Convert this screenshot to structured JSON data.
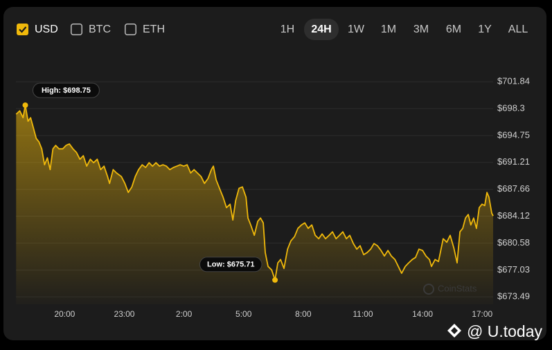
{
  "controls": {
    "currencies": [
      {
        "label": "USD",
        "checked": true
      },
      {
        "label": "BTC",
        "checked": false
      },
      {
        "label": "ETH",
        "checked": false
      }
    ],
    "ranges": [
      {
        "label": "1H",
        "active": false
      },
      {
        "label": "24H",
        "active": true
      },
      {
        "label": "1W",
        "active": false
      },
      {
        "label": "1M",
        "active": false
      },
      {
        "label": "3M",
        "active": false
      },
      {
        "label": "6M",
        "active": false
      },
      {
        "label": "1Y",
        "active": false
      },
      {
        "label": "ALL",
        "active": false
      }
    ]
  },
  "chart_data": {
    "type": "area",
    "color": "#f0b90b",
    "x": [
      17.56,
      17.74,
      17.91,
      18.02,
      18.16,
      18.29,
      18.43,
      18.57,
      18.71,
      18.85,
      18.99,
      19.13,
      19.27,
      19.41,
      19.55,
      19.72,
      19.9,
      20.07,
      20.24,
      20.42,
      20.59,
      20.77,
      20.94,
      21.11,
      21.29,
      21.46,
      21.64,
      21.81,
      21.98,
      22.16,
      22.26,
      22.44,
      22.61,
      22.85,
      23.03,
      23.2,
      23.38,
      23.55,
      23.72,
      23.9,
      24.07,
      24.25,
      24.42,
      24.59,
      24.77,
      24.94,
      25.12,
      25.29,
      25.47,
      25.64,
      25.81,
      25.99,
      26.16,
      26.34,
      26.51,
      26.68,
      26.86,
      27.03,
      27.21,
      27.38,
      27.48,
      27.62,
      27.83,
      27.97,
      28.14,
      28.32,
      28.46,
      28.6,
      28.77,
      28.94,
      29.12,
      29.22,
      29.36,
      29.54,
      29.71,
      29.85,
      29.99,
      30.09,
      30.23,
      30.41,
      30.58,
      30.72,
      30.86,
      31.03,
      31.21,
      31.38,
      31.56,
      31.73,
      31.91,
      32.08,
      32.25,
      32.43,
      32.6,
      32.78,
      32.95,
      33.12,
      33.3,
      33.47,
      33.65,
      33.82,
      33.99,
      34.17,
      34.34,
      34.52,
      34.69,
      34.86,
      35.04,
      35.21,
      35.39,
      35.56,
      35.73,
      35.91,
      36.08,
      36.26,
      36.43,
      36.61,
      36.78,
      36.95,
      37.13,
      37.3,
      37.48,
      37.65,
      37.82,
      38.0,
      38.17,
      38.35,
      38.45,
      38.63,
      38.8,
      39.04,
      39.22,
      39.39,
      39.57,
      39.74,
      39.88,
      40.02,
      40.16,
      40.3,
      40.43,
      40.57,
      40.71,
      40.85,
      40.99,
      41.13,
      41.24,
      41.34,
      41.48,
      41.55
    ],
    "values": [
      697.56,
      698.01,
      697.1,
      698.75,
      696.64,
      697.1,
      695.73,
      694.37,
      693.91,
      693.0,
      690.9,
      691.81,
      690.26,
      693.0,
      693.45,
      693.0,
      693.0,
      693.45,
      693.64,
      693.0,
      692.54,
      691.63,
      692.09,
      690.72,
      691.63,
      691.17,
      691.63,
      690.26,
      690.72,
      689.35,
      688.44,
      690.26,
      689.81,
      689.35,
      688.44,
      687.25,
      687.98,
      689.35,
      690.26,
      690.9,
      690.54,
      691.17,
      690.72,
      691.17,
      690.72,
      690.9,
      690.72,
      690.26,
      690.54,
      690.72,
      690.9,
      690.72,
      690.9,
      689.81,
      690.26,
      689.81,
      689.35,
      688.44,
      689.08,
      690.26,
      690.72,
      688.9,
      687.53,
      686.62,
      685.25,
      685.7,
      683.61,
      686.16,
      687.8,
      687.98,
      686.62,
      683.88,
      682.97,
      681.6,
      683.43,
      683.88,
      683.24,
      679.32,
      677.5,
      677.04,
      675.71,
      677.96,
      678.41,
      677.23,
      679.78,
      680.87,
      681.42,
      682.51,
      682.97,
      683.24,
      682.51,
      682.97,
      681.6,
      681.15,
      681.78,
      681.15,
      681.6,
      682.06,
      681.15,
      681.6,
      682.06,
      681.15,
      681.6,
      680.51,
      679.78,
      680.23,
      679.05,
      679.32,
      679.78,
      680.51,
      680.23,
      679.6,
      678.87,
      679.6,
      678.87,
      678.41,
      677.5,
      676.59,
      677.5,
      677.96,
      678.41,
      678.68,
      679.78,
      679.6,
      678.87,
      678.41,
      677.5,
      678.41,
      678.14,
      681.15,
      680.69,
      681.6,
      679.96,
      677.96,
      682.06,
      682.51,
      683.88,
      684.34,
      682.97,
      683.88,
      682.51,
      685.25,
      685.7,
      685.52,
      687.25,
      686.62,
      684.52,
      684.15
    ],
    "xlim": [
      17.55,
      41.55
    ],
    "xticks": [
      {
        "value": 20,
        "label": "20:00"
      },
      {
        "value": 23,
        "label": "23:00"
      },
      {
        "value": 26,
        "label": "2:00"
      },
      {
        "value": 29,
        "label": "5:00"
      },
      {
        "value": 32,
        "label": "8:00"
      },
      {
        "value": 35,
        "label": "11:00"
      },
      {
        "value": 38,
        "label": "14:00"
      },
      {
        "value": 41,
        "label": "17:00"
      }
    ],
    "ylim": [
      672.5,
      703.5
    ],
    "yticks": [
      {
        "value": 701.84,
        "label": "$701.84"
      },
      {
        "value": 698.3,
        "label": "$698.3"
      },
      {
        "value": 694.75,
        "label": "$694.75"
      },
      {
        "value": 691.21,
        "label": "$691.21"
      },
      {
        "value": 687.66,
        "label": "$687.66"
      },
      {
        "value": 684.12,
        "label": "$684.12"
      },
      {
        "value": 680.58,
        "label": "$680.58"
      },
      {
        "value": 677.03,
        "label": "$677.03"
      },
      {
        "value": 673.49,
        "label": "$673.49"
      }
    ],
    "grid": true,
    "annotations": [
      {
        "label": "High: $698.75",
        "value": 698.75,
        "x": 18.02,
        "kind": "high"
      },
      {
        "label": "Low: $675.71",
        "value": 675.71,
        "x": 30.58,
        "kind": "low"
      }
    ]
  },
  "watermarks": {
    "chart": "CoinStats",
    "site": "@ U.today"
  }
}
